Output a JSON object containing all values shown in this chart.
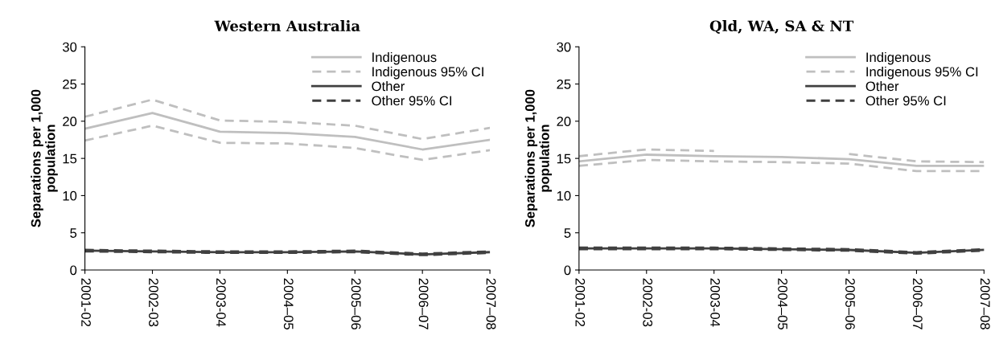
{
  "chart_data": [
    {
      "type": "line",
      "title": "Western Australia",
      "ylabel": "Separations per 1,000\npopulation",
      "categories": [
        "2001-02",
        "2002-03",
        "2003-04",
        "2004–05",
        "2005–06",
        "2006–07",
        "2007–08"
      ],
      "ylim": [
        0,
        30
      ],
      "yticks": [
        0,
        5,
        10,
        15,
        20,
        25,
        30
      ],
      "grid": false,
      "legend": "top right",
      "marker": "none",
      "series": [
        {
          "name": "Indigenous",
          "color": "#bfbfbf",
          "line_style": "solid",
          "values": [
            19.0,
            21.1,
            18.6,
            18.4,
            17.9,
            16.2,
            17.5
          ]
        },
        {
          "name": "Indigenous 95% CI",
          "color": "#bfbfbf",
          "line_style": "dashed",
          "values": [
            20.6,
            22.9,
            20.1,
            19.9,
            19.4,
            17.6,
            19.1
          ]
        },
        {
          "color": "#bfbfbf",
          "line_style": "dashed",
          "values": [
            17.4,
            19.4,
            17.1,
            17.0,
            16.4,
            14.8,
            16.1
          ]
        },
        {
          "name": "Other",
          "color": "#404040",
          "line_style": "solid",
          "values": [
            2.6,
            2.5,
            2.4,
            2.4,
            2.5,
            2.1,
            2.4
          ]
        },
        {
          "name": "Other 95% CI",
          "color": "#404040",
          "line_style": "dashed",
          "values": [
            2.7,
            2.6,
            2.5,
            2.5,
            2.6,
            2.2,
            2.5
          ]
        },
        {
          "color": "#404040",
          "line_style": "dashed",
          "values": [
            2.5,
            2.4,
            2.3,
            2.3,
            2.4,
            2.0,
            2.3
          ]
        }
      ]
    },
    {
      "type": "line",
      "title": "Qld, WA, SA & NT",
      "ylabel": "Separations per 1,000\npopulation",
      "categories": [
        "2001-02",
        "2002-03",
        "2003-04",
        "2004–05",
        "2005–06",
        "2006–07",
        "2007–08"
      ],
      "ylim": [
        0,
        30
      ],
      "yticks": [
        0,
        5,
        10,
        15,
        20,
        25,
        30
      ],
      "grid": false,
      "legend": "top right",
      "marker": "none",
      "series": [
        {
          "name": "Indigenous",
          "color": "#bfbfbf",
          "line_style": "solid",
          "values": [
            14.6,
            15.5,
            15.3,
            15.2,
            14.9,
            14.0,
            14.0
          ]
        },
        {
          "name": "Indigenous 95% CI",
          "color": "#bfbfbf",
          "line_style": "dashed",
          "values": [
            15.3,
            16.2,
            16.0,
            null,
            15.6,
            14.6,
            14.5
          ]
        },
        {
          "color": "#bfbfbf",
          "line_style": "dashed",
          "values": [
            14.0,
            14.8,
            14.6,
            14.5,
            14.3,
            13.3,
            13.3
          ]
        },
        {
          "name": "Other",
          "color": "#404040",
          "line_style": "solid",
          "values": [
            2.9,
            2.9,
            2.9,
            2.8,
            2.7,
            2.3,
            2.7
          ]
        },
        {
          "name": "Other 95% CI",
          "color": "#404040",
          "line_style": "dashed",
          "values": [
            3.0,
            3.0,
            3.0,
            2.9,
            2.8,
            2.4,
            2.8
          ]
        },
        {
          "color": "#404040",
          "line_style": "dashed",
          "values": [
            2.8,
            2.8,
            2.8,
            2.7,
            2.6,
            2.2,
            2.6
          ]
        }
      ]
    }
  ]
}
